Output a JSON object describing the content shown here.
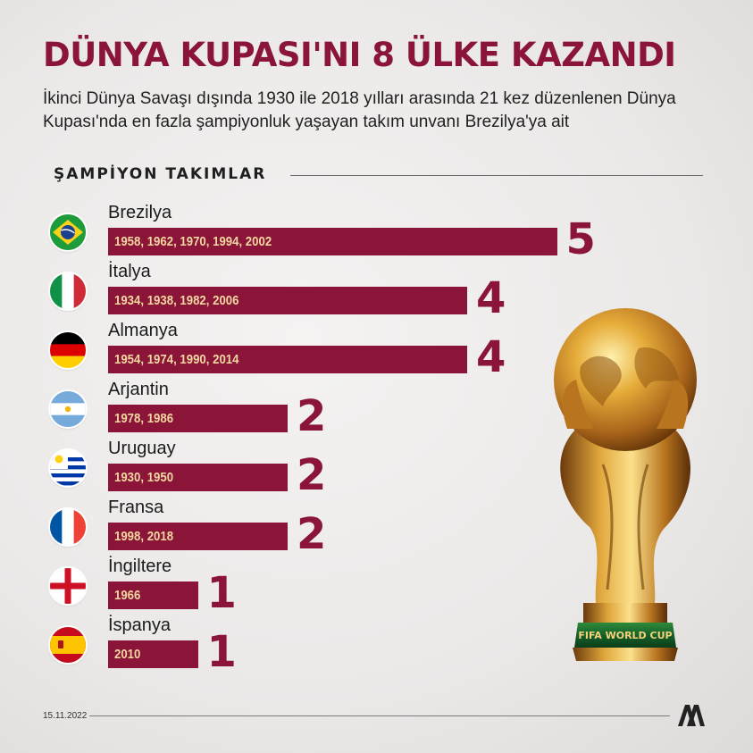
{
  "title": "DÜNYA KUPASI'NI 8 ÜLKE KAZANDI",
  "subtitle": "İkinci Dünya Savaşı dışında 1930 ile 2018 yılları arasında 21 kez düzenlenen Dünya Kupası'nda en fazla şampiyonluk yaşayan takım unvanı Brezilya'ya ait",
  "section_title": "ŞAMPİYON TAKIMLAR",
  "footer": {
    "date": "15.11.2022",
    "logo": "aa-logo"
  },
  "colors": {
    "accent": "#8a1538",
    "years_text": "#f2d6a0"
  },
  "chart_data": {
    "type": "bar",
    "orientation": "horizontal",
    "categories": [
      "Brezilya",
      "İtalya",
      "Almanya",
      "Arjantin",
      "Uruguay",
      "Fransa",
      "İngiltere",
      "İspanya"
    ],
    "values": [
      5,
      4,
      4,
      2,
      2,
      2,
      1,
      1
    ],
    "bar_labels": [
      "1958, 1962, 1970, 1994, 2002",
      "1934, 1938, 1982, 2006",
      "1954, 1974, 1990, 2014",
      "1978, 1986",
      "1930, 1950",
      "1998, 2018",
      "1966",
      "2010"
    ],
    "flags": [
      "brazil-flag",
      "italy-flag",
      "germany-flag",
      "argentina-flag",
      "uruguay-flag",
      "france-flag",
      "england-flag",
      "spain-flag"
    ],
    "title": "ŞAMPİYON TAKIMLAR",
    "xlabel": "",
    "ylabel": "",
    "xlim": [
      0,
      5
    ],
    "grid": false,
    "legend": "none"
  }
}
